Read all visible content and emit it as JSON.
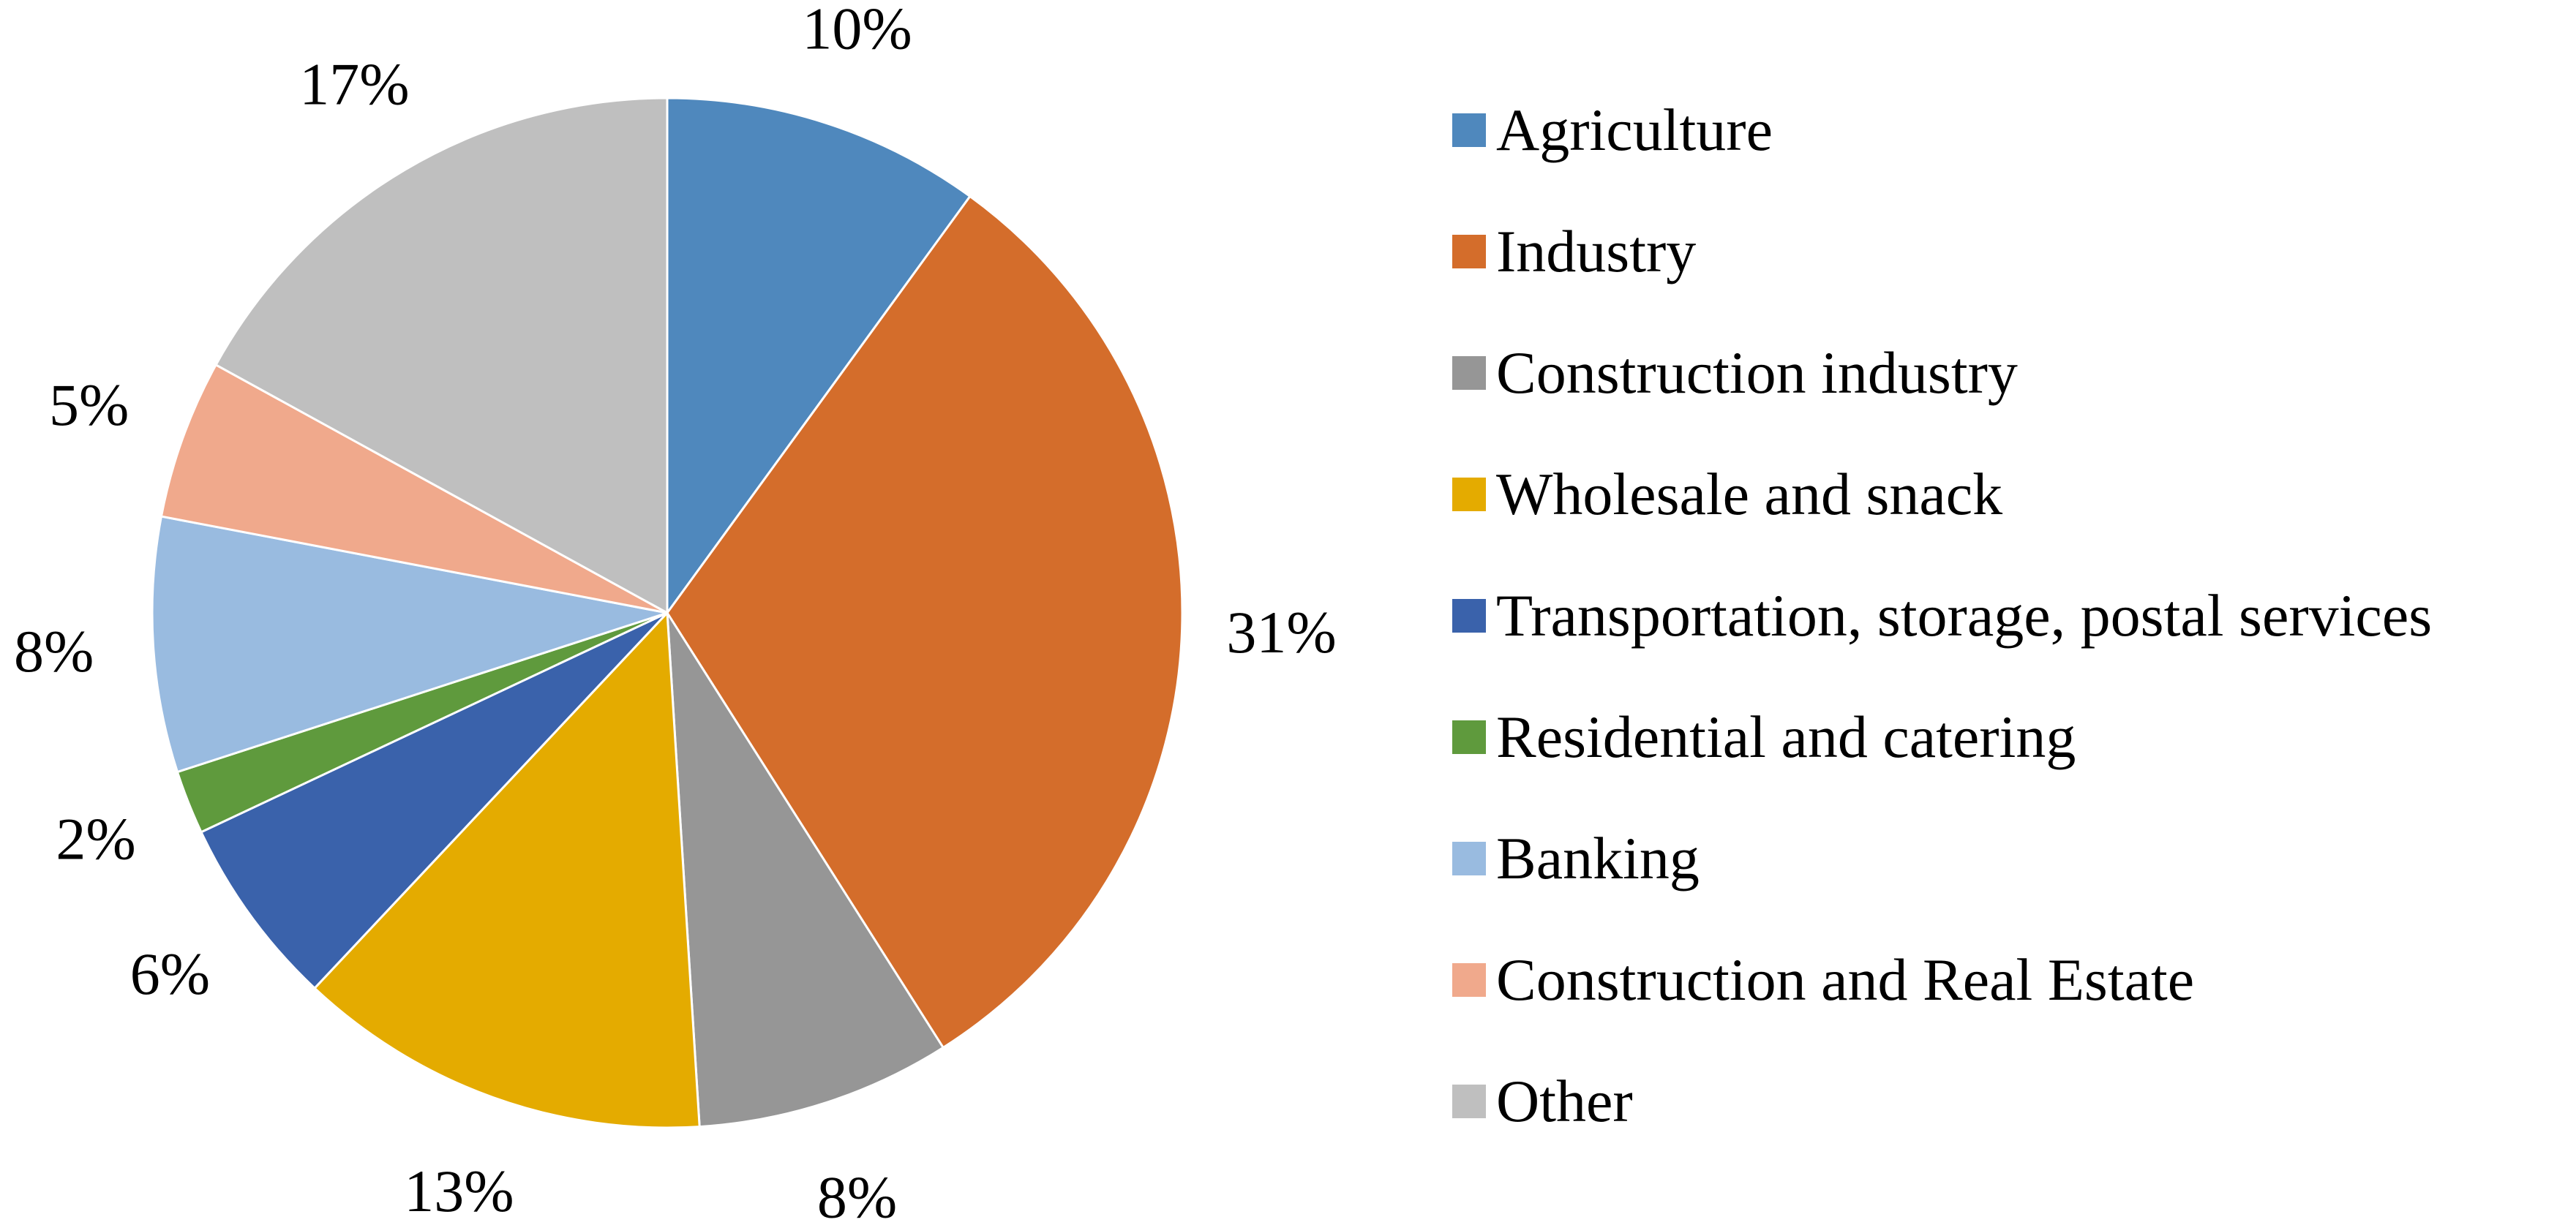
{
  "chart_data": {
    "type": "pie",
    "title": "",
    "unit": "%",
    "slices": [
      {
        "name": "Agriculture",
        "value": 10,
        "label": "10%",
        "color": "#4f88bd"
      },
      {
        "name": "Industry",
        "value": 31,
        "label": "31%",
        "color": "#d46d2b"
      },
      {
        "name": "Construction industry",
        "value": 8,
        "label": "8%",
        "color": "#969696"
      },
      {
        "name": "Wholesale and snack",
        "value": 13,
        "label": "13%",
        "color": "#e4ab00"
      },
      {
        "name": "Transportation, storage, postal services",
        "value": 6,
        "label": "6%",
        "color": "#3a62ab"
      },
      {
        "name": "Residential and catering",
        "value": 2,
        "label": "2%",
        "color": "#5f9a3d"
      },
      {
        "name": "Banking",
        "value": 8,
        "label": "8%",
        "color": "#99bbe0"
      },
      {
        "name": "Construction and Real Estate",
        "value": 5,
        "label": "5%",
        "color": "#f0a98c"
      },
      {
        "name": "Other",
        "value": 17,
        "label": "17%",
        "color": "#bfbfbf"
      }
    ],
    "legend": {
      "position": "right"
    }
  }
}
